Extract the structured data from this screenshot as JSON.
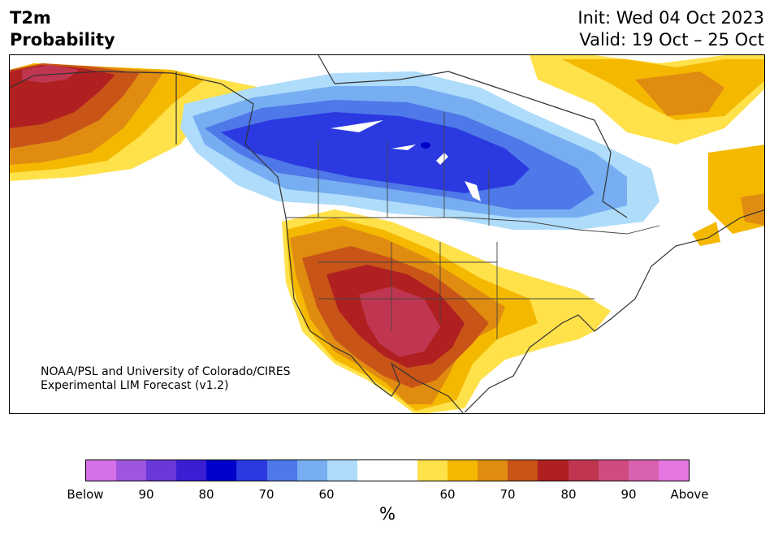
{
  "title": {
    "line1": "T2m",
    "line2": "Probability"
  },
  "dates": {
    "init": "Init: Wed 04 Oct 2023",
    "valid": "Valid: 19 Oct – 25 Oct"
  },
  "credit": {
    "line1": "NOAA/PSL and University of Colorado/CIRES",
    "line2": "Experimental LIM Forecast (v1.2)"
  },
  "colorbar": {
    "colors": [
      "#d670e8",
      "#9e55e0",
      "#6a38d8",
      "#3b1ed4",
      "#0000cc",
      "#2a3ae0",
      "#4f78e8",
      "#77aef2",
      "#aedcfa",
      "#ffffff",
      "#ffffff",
      "#ffe14a",
      "#f5b800",
      "#e08c10",
      "#c85418",
      "#b02020",
      "#c03650",
      "#d04c80",
      "#d862b0",
      "#e478e0"
    ],
    "ticks": [
      "Below",
      "90",
      "80",
      "70",
      "60",
      "60",
      "70",
      "80",
      "90",
      "Above"
    ],
    "unit": "%"
  }
}
